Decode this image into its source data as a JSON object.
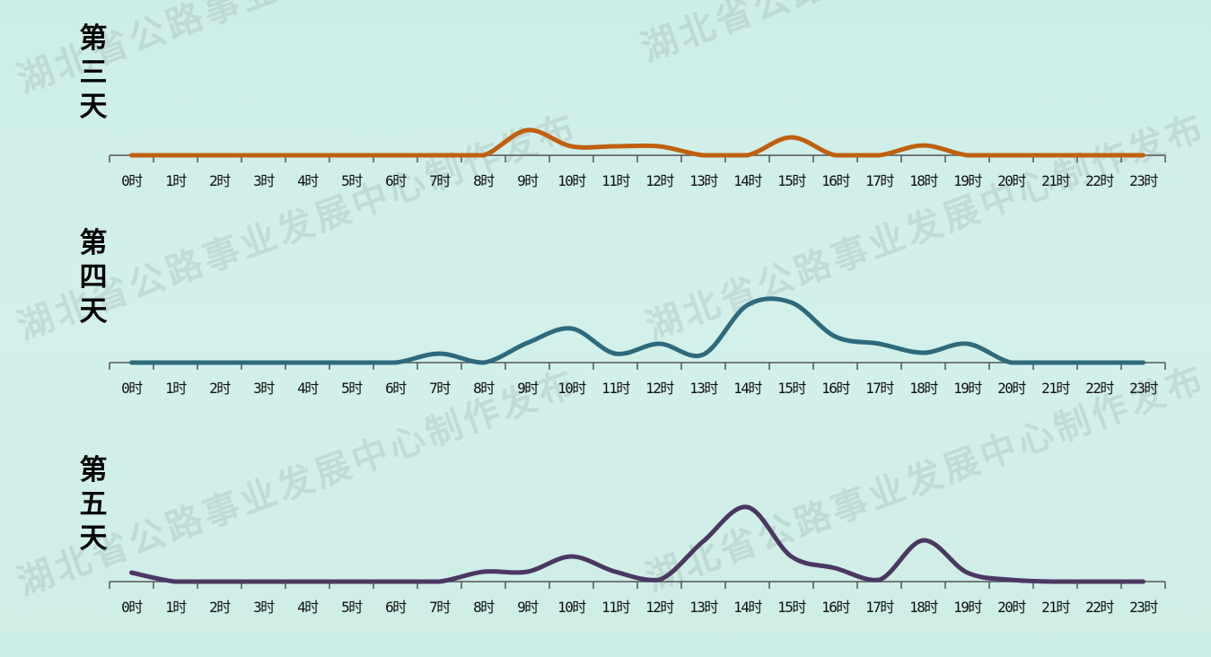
{
  "watermark": "湖北省公路事业发展中心制作发布",
  "chart_data": [
    {
      "type": "line",
      "title": "第三天",
      "categories": [
        "0时",
        "1时",
        "2时",
        "3时",
        "4时",
        "5时",
        "6时",
        "7时",
        "8时",
        "9时",
        "10时",
        "11时",
        "12时",
        "13时",
        "14时",
        "15时",
        "16时",
        "17时",
        "18时",
        "19时",
        "20时",
        "21时",
        "22时",
        "23时"
      ],
      "values": [
        0,
        0,
        0,
        0,
        0,
        0,
        0,
        0,
        0,
        28,
        10,
        10,
        10,
        0,
        0,
        20,
        0,
        0,
        11,
        0,
        0,
        0,
        0,
        0
      ],
      "color": "#c0600f",
      "smooth": true,
      "y_axis": "hidden",
      "grid": false
    },
    {
      "type": "line",
      "title": "第四天",
      "categories": [
        "0时",
        "1时",
        "2时",
        "3时",
        "4时",
        "5时",
        "6时",
        "7时",
        "8时",
        "9时",
        "10时",
        "11时",
        "12时",
        "13时",
        "14时",
        "15时",
        "16时",
        "17时",
        "18时",
        "19时",
        "20时",
        "21时",
        "22时",
        "23时"
      ],
      "values": [
        0,
        0,
        0,
        0,
        0,
        0,
        0,
        10,
        0,
        22,
        38,
        10,
        21,
        9,
        64,
        67,
        29,
        21,
        11,
        21,
        0,
        0,
        0,
        0
      ],
      "color": "#2e6a7c",
      "smooth": true,
      "y_axis": "hidden",
      "grid": false
    },
    {
      "type": "line",
      "title": "第五天",
      "categories": [
        "0时",
        "1时",
        "2时",
        "3时",
        "4时",
        "5时",
        "6时",
        "7时",
        "8时",
        "9时",
        "10时",
        "11时",
        "12时",
        "13时",
        "14时",
        "15时",
        "16时",
        "17时",
        "18时",
        "19时",
        "20时",
        "21时",
        "22时",
        "23时"
      ],
      "values": [
        10,
        0,
        0,
        0,
        0,
        0,
        0,
        0,
        11,
        11,
        28,
        11,
        2,
        45,
        83,
        28,
        15,
        2,
        46,
        10,
        2,
        0,
        0,
        0
      ],
      "color": "#4b3862",
      "smooth": true,
      "y_axis": "hidden",
      "grid": false
    }
  ]
}
